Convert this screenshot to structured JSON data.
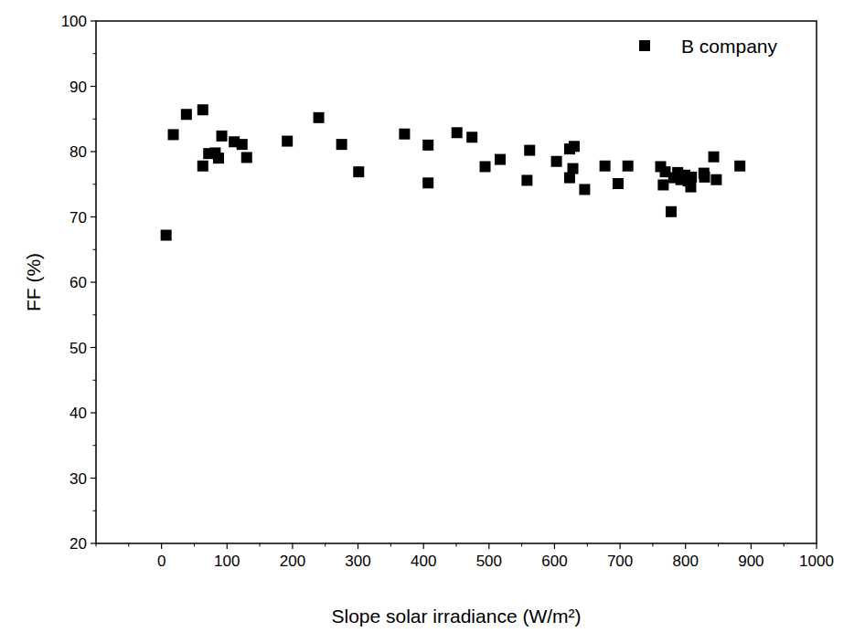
{
  "chart_data": {
    "type": "scatter",
    "x_label": "Slope solar irradiance (W/m²)",
    "y_label": "FF (%)",
    "xlim": [
      -100,
      1000
    ],
    "xticks": [
      0,
      100,
      200,
      300,
      400,
      500,
      600,
      700,
      800,
      900,
      1000
    ],
    "ylim": [
      20,
      100
    ],
    "yticks": [
      20,
      30,
      40,
      50,
      60,
      70,
      80,
      90,
      100
    ],
    "grid": false,
    "legend": "top-right",
    "series": [
      {
        "name": "B company",
        "color": "#000000",
        "marker": "square",
        "x": [
          7,
          18,
          38,
          63,
          63,
          72,
          82,
          87,
          92,
          111,
          123,
          130,
          192,
          240,
          275,
          301,
          371,
          407,
          407,
          451,
          474,
          494,
          517,
          558,
          562,
          603,
          623,
          630,
          628,
          623,
          646,
          677,
          697,
          712,
          762,
          766,
          769,
          778,
          782,
          788,
          793,
          799,
          804,
          808,
          809,
          828,
          829,
          843,
          847,
          883
        ],
        "values": [
          67.2,
          82.6,
          85.7,
          86.4,
          77.8,
          79.7,
          79.8,
          79,
          82.4,
          81.5,
          81.1,
          79.1,
          81.6,
          85.2,
          81.1,
          76.9,
          82.7,
          81,
          75.2,
          82.9,
          82.2,
          77.7,
          78.8,
          75.6,
          80.2,
          78.5,
          80.4,
          80.8,
          77.4,
          76,
          74.2,
          77.8,
          75.1,
          77.8,
          77.7,
          74.9,
          76.9,
          70.8,
          76,
          76.8,
          75.7,
          76.4,
          75.5,
          74.6,
          76.1,
          76.7,
          76.1,
          79.2,
          75.7,
          77.8
        ]
      }
    ]
  }
}
